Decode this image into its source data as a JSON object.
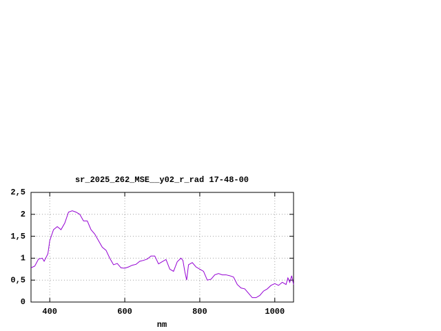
{
  "chart_data": {
    "type": "line",
    "title": "sr_2025_262_MSE__y02_r_rad 17-48-00",
    "x_label": "nm",
    "x": [
      350,
      360,
      370,
      380,
      385,
      395,
      400,
      410,
      420,
      430,
      440,
      450,
      460,
      470,
      480,
      490,
      500,
      510,
      520,
      530,
      540,
      550,
      560,
      570,
      580,
      590,
      600,
      610,
      620,
      630,
      640,
      650,
      660,
      670,
      680,
      690,
      700,
      710,
      720,
      730,
      740,
      750,
      755,
      760,
      765,
      770,
      780,
      790,
      800,
      810,
      820,
      830,
      840,
      850,
      860,
      870,
      880,
      890,
      900,
      910,
      920,
      930,
      940,
      950,
      960,
      970,
      980,
      990,
      1000,
      1010,
      1020,
      1030,
      1035,
      1040,
      1045,
      1050
    ],
    "series": [
      {
        "color": "#9400d3",
        "values": [
          0.78,
          0.82,
          0.98,
          1.0,
          0.93,
          1.1,
          1.4,
          1.65,
          1.72,
          1.65,
          1.8,
          2.05,
          2.08,
          2.05,
          2.0,
          1.85,
          1.85,
          1.65,
          1.55,
          1.4,
          1.25,
          1.18,
          1.0,
          0.85,
          0.88,
          0.78,
          0.77,
          0.8,
          0.84,
          0.86,
          0.93,
          0.95,
          0.98,
          1.05,
          1.05,
          0.87,
          0.92,
          0.97,
          0.75,
          0.7,
          0.92,
          1.0,
          0.95,
          0.7,
          0.5,
          0.85,
          0.9,
          0.8,
          0.75,
          0.7,
          0.5,
          0.52,
          0.62,
          0.65,
          0.62,
          0.62,
          0.6,
          0.57,
          0.4,
          0.32,
          0.3,
          0.2,
          0.1,
          0.1,
          0.15,
          0.25,
          0.3,
          0.38,
          0.42,
          0.38,
          0.45,
          0.4,
          0.55,
          0.45,
          0.6,
          0.4
        ]
      }
    ],
    "xlim": [
      350,
      1050
    ],
    "xticks": [
      400,
      600,
      800,
      1000
    ],
    "ylim": [
      0,
      2.5
    ],
    "yticks": [
      0,
      {
        "value": 0.5,
        "label": "0,5"
      },
      1,
      {
        "value": 1.5,
        "label": "1,5"
      },
      2,
      {
        "value": 2.5,
        "label": "2,5"
      }
    ],
    "grid": true
  }
}
